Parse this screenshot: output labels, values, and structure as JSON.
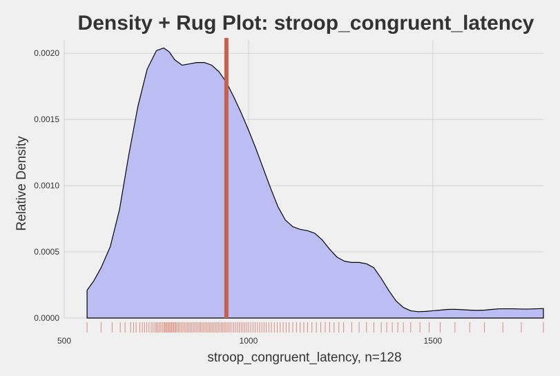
{
  "chart_data": {
    "type": "area",
    "title": "Density + Rug Plot: stroop_congruent_latency",
    "xlabel": "stroop_congruent_latency, n=128",
    "ylabel": "Relative Density",
    "xlim": [
      500,
      1800
    ],
    "ylim": [
      0,
      0.0021
    ],
    "x_ticks": [
      500,
      1000,
      1500
    ],
    "x_tick_labels": [
      "500",
      "1000",
      "1500"
    ],
    "y_ticks": [
      0,
      0.0005,
      0.001,
      0.0015,
      0.002
    ],
    "y_tick_labels": [
      "0.0000",
      "0.0005",
      "0.0010",
      "0.0015",
      "0.0020"
    ],
    "grid": true,
    "legend": "none",
    "marker_line": {
      "x": 940,
      "color": "#c8604f"
    },
    "colors": {
      "fill": "#bcbdf2",
      "outline": "#000000",
      "rug": "#d98b7d",
      "marker": "#c8604f",
      "background": "#f0f0f0",
      "grid": "#d2d2d2"
    },
    "density": {
      "x": [
        562,
        562,
        580,
        600,
        625,
        650,
        675,
        700,
        725,
        750,
        770,
        785,
        800,
        820,
        840,
        860,
        880,
        900,
        920,
        940,
        960,
        980,
        1000,
        1020,
        1040,
        1060,
        1080,
        1100,
        1120,
        1140,
        1160,
        1180,
        1200,
        1220,
        1240,
        1260,
        1280,
        1300,
        1320,
        1340,
        1360,
        1380,
        1400,
        1420,
        1440,
        1460,
        1480,
        1500,
        1520,
        1540,
        1560,
        1580,
        1600,
        1620,
        1640,
        1660,
        1680,
        1700,
        1720,
        1740,
        1760,
        1780,
        1800,
        1800
      ],
      "y": [
        0,
        0.00021,
        0.00028,
        0.00038,
        0.00054,
        0.00082,
        0.00123,
        0.0016,
        0.00188,
        0.00202,
        0.00204,
        0.00201,
        0.00195,
        0.00191,
        0.00192,
        0.00193,
        0.00193,
        0.00191,
        0.00186,
        0.00178,
        0.00167,
        0.00155,
        0.00142,
        0.00128,
        0.00113,
        0.00098,
        0.00084,
        0.00074,
        0.00069,
        0.00067,
        0.00066,
        0.00064,
        0.00059,
        0.00052,
        0.00046,
        0.00043,
        0.00042,
        0.00042,
        0.00041,
        0.00038,
        0.0003,
        0.00021,
        0.00013,
        8e-05,
        5.5e-05,
        4.8e-05,
        5e-05,
        5.5e-05,
        6e-05,
        6.5e-05,
        6.6e-05,
        6.3e-05,
        6e-05,
        5.8e-05,
        6e-05,
        6.5e-05,
        7e-05,
        7e-05,
        7e-05,
        6.8e-05,
        6.8e-05,
        7e-05,
        7.2e-05,
        0
      ]
    },
    "rug": [
      562,
      600,
      630,
      652,
      665,
      680,
      688,
      695,
      705,
      712,
      718,
      724,
      730,
      736,
      741,
      746,
      750,
      754,
      758,
      762,
      766,
      770,
      773,
      776,
      779,
      782,
      785,
      788,
      791,
      794,
      797,
      800,
      803,
      806,
      810,
      814,
      818,
      822,
      826,
      830,
      834,
      838,
      842,
      846,
      850,
      854,
      858,
      862,
      866,
      870,
      874,
      878,
      882,
      886,
      890,
      894,
      898,
      902,
      906,
      910,
      914,
      918,
      922,
      926,
      930,
      934,
      938,
      942,
      946,
      950,
      955,
      960,
      965,
      970,
      975,
      980,
      985,
      990,
      995,
      1000,
      1006,
      1012,
      1018,
      1024,
      1030,
      1036,
      1042,
      1048,
      1055,
      1062,
      1070,
      1078,
      1086,
      1094,
      1102,
      1110,
      1120,
      1130,
      1140,
      1150,
      1160,
      1172,
      1184,
      1196,
      1208,
      1220,
      1232,
      1245,
      1258,
      1280,
      1300,
      1320,
      1340,
      1360,
      1375,
      1390,
      1405,
      1420,
      1440,
      1465,
      1490,
      1520,
      1560,
      1600,
      1640,
      1690,
      1740,
      1800
    ]
  }
}
